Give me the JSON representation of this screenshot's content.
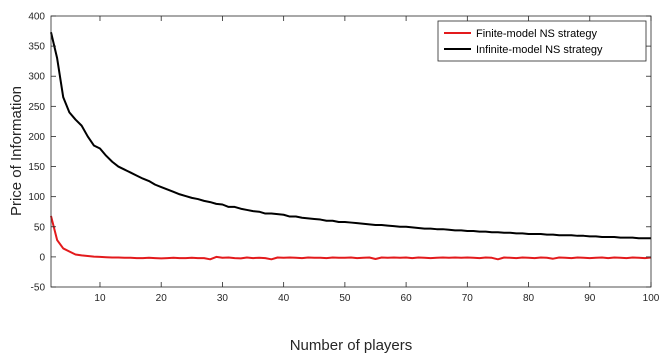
{
  "chart_data": {
    "type": "line",
    "title": "",
    "xlabel": "Number of players",
    "ylabel": "Price of Information",
    "xlim": [
      2,
      100
    ],
    "ylim": [
      -50,
      400
    ],
    "xticks": [
      10,
      20,
      30,
      40,
      50,
      60,
      70,
      80,
      90,
      100
    ],
    "yticks": [
      -50,
      0,
      50,
      100,
      150,
      200,
      250,
      300,
      350,
      400
    ],
    "grid": false,
    "legend_position": "top-right",
    "series": [
      {
        "name": "Finite-model NS strategy",
        "color": "#e31a1c",
        "x": [
          2,
          3,
          4,
          5,
          6,
          7,
          8,
          9,
          10,
          11,
          12,
          13,
          14,
          15,
          16,
          17,
          18,
          19,
          20,
          21,
          22,
          23,
          24,
          25,
          26,
          27,
          28,
          29,
          30,
          31,
          32,
          33,
          34,
          35,
          36,
          37,
          38,
          39,
          40,
          41,
          42,
          43,
          44,
          45,
          46,
          47,
          48,
          49,
          50,
          51,
          52,
          53,
          54,
          55,
          56,
          57,
          58,
          59,
          60,
          61,
          62,
          63,
          64,
          65,
          66,
          67,
          68,
          69,
          70,
          71,
          72,
          73,
          74,
          75,
          76,
          77,
          78,
          79,
          80,
          81,
          82,
          83,
          84,
          85,
          86,
          87,
          88,
          89,
          90,
          91,
          92,
          93,
          94,
          95,
          96,
          97,
          98,
          99,
          100
        ],
        "y": [
          68,
          28,
          14,
          9,
          4,
          2.5,
          1.5,
          0.5,
          0,
          -0.5,
          -1,
          -1,
          -1.5,
          -1.5,
          -2,
          -2,
          -1.5,
          -2,
          -2.5,
          -2,
          -1.5,
          -2,
          -2,
          -1.5,
          -2,
          -2,
          -4,
          0,
          -1.5,
          -1,
          -2,
          -2.5,
          -1,
          -2,
          -1.5,
          -2,
          -4,
          -1,
          -1.5,
          -1,
          -1.5,
          -2,
          -1,
          -1.5,
          -1.5,
          -2,
          -1,
          -1.5,
          -1.5,
          -1,
          -2,
          -1.5,
          -1,
          -3.5,
          -1,
          -1.5,
          -1,
          -1.5,
          -1,
          -2,
          -1,
          -1.5,
          -2,
          -1.5,
          -1,
          -1.5,
          -1,
          -1.5,
          -1,
          -1.5,
          -2,
          -1,
          -1.5,
          -4,
          -1,
          -1.5,
          -2,
          -1,
          -1.5,
          -2,
          -1,
          -1.5,
          -3,
          -1,
          -1.5,
          -2,
          -1,
          -1.5,
          -2,
          -1.5,
          -1,
          -2,
          -1,
          -1.5,
          -2,
          -1,
          -1.5,
          -2,
          -1
        ]
      },
      {
        "name": "Infinite-model NS strategy",
        "color": "#000000",
        "x": [
          2,
          3,
          4,
          5,
          6,
          7,
          8,
          9,
          10,
          11,
          12,
          13,
          14,
          15,
          16,
          17,
          18,
          19,
          20,
          21,
          22,
          23,
          24,
          25,
          26,
          27,
          28,
          29,
          30,
          31,
          32,
          33,
          34,
          35,
          36,
          37,
          38,
          39,
          40,
          41,
          42,
          43,
          44,
          45,
          46,
          47,
          48,
          49,
          50,
          51,
          52,
          53,
          54,
          55,
          56,
          57,
          58,
          59,
          60,
          61,
          62,
          63,
          64,
          65,
          66,
          67,
          68,
          69,
          70,
          71,
          72,
          73,
          74,
          75,
          76,
          77,
          78,
          79,
          80,
          81,
          82,
          83,
          84,
          85,
          86,
          87,
          88,
          89,
          90,
          91,
          92,
          93,
          94,
          95,
          96,
          97,
          98,
          99,
          100
        ],
        "y": [
          373,
          330,
          265,
          240,
          228,
          218,
          200,
          185,
          180,
          168,
          158,
          150,
          145,
          140,
          135,
          130,
          126,
          120,
          116,
          112,
          108,
          104,
          101,
          98,
          96,
          93,
          91,
          88,
          87,
          83,
          83,
          80,
          78,
          76,
          75,
          72,
          72,
          71,
          70,
          67,
          67,
          65,
          64,
          63,
          62,
          60,
          60,
          58,
          58,
          57,
          56,
          55,
          54,
          53,
          53,
          52,
          51,
          50,
          50,
          49,
          48,
          47,
          47,
          46,
          46,
          45,
          44,
          44,
          43,
          43,
          42,
          42,
          41,
          41,
          40,
          40,
          39,
          39,
          38,
          38,
          38,
          37,
          37,
          36,
          36,
          36,
          35,
          35,
          34,
          34,
          33,
          33,
          33,
          32,
          32,
          32,
          31,
          31,
          31
        ]
      }
    ]
  }
}
